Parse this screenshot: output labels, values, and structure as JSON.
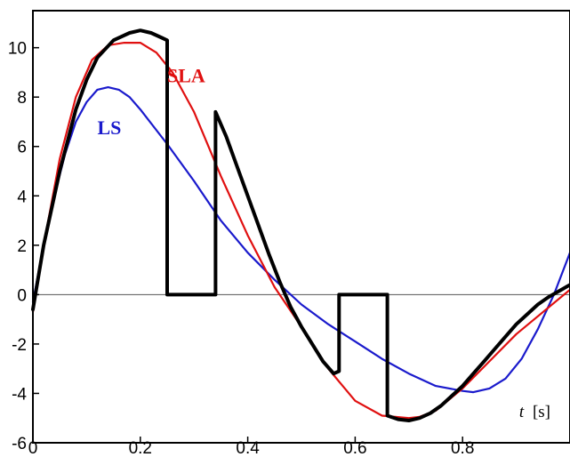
{
  "chart_data": {
    "type": "line",
    "xlabel": {
      "var": "t",
      "unit": "[s]"
    },
    "ylabel": "",
    "xlim": [
      0,
      1.0
    ],
    "ylim": [
      -6,
      11.5
    ],
    "xticks": [
      0,
      0.2,
      0.4,
      0.6,
      0.8
    ],
    "xtick_labels": [
      "0",
      "0.2",
      "0.4",
      "0.6",
      "0.8"
    ],
    "yticks": [
      -6,
      -4,
      -2,
      0,
      2,
      4,
      6,
      8,
      10
    ],
    "ytick_labels": [
      "-6",
      "-4",
      "-2",
      "0",
      "2",
      "4",
      "6",
      "8",
      "10"
    ],
    "grid": false,
    "zero_line": true,
    "series": [
      {
        "key": "measured",
        "color": "#000000",
        "x": [
          0,
          0.02,
          0.05,
          0.08,
          0.1,
          0.12,
          0.15,
          0.18,
          0.2,
          0.22,
          0.24,
          0.25,
          0.25,
          0.34,
          0.34,
          0.36,
          0.38,
          0.4,
          0.42,
          0.44,
          0.46,
          0.48,
          0.5,
          0.52,
          0.54,
          0.56,
          0.57,
          0.57,
          0.66,
          0.66,
          0.68,
          0.7,
          0.72,
          0.74,
          0.76,
          0.78,
          0.8,
          0.82,
          0.84,
          0.86,
          0.88,
          0.9,
          0.92,
          0.94,
          0.96,
          1.0
        ],
        "values": [
          -0.6,
          2.0,
          5.0,
          7.5,
          8.7,
          9.6,
          10.3,
          10.6,
          10.7,
          10.6,
          10.4,
          10.3,
          0,
          0,
          7.4,
          6.4,
          5.2,
          4.0,
          2.8,
          1.6,
          0.5,
          -0.5,
          -1.3,
          -2.0,
          -2.7,
          -3.2,
          -3.1,
          0,
          0,
          -4.9,
          -5.05,
          -5.1,
          -5.0,
          -4.8,
          -4.5,
          -4.1,
          -3.7,
          -3.2,
          -2.7,
          -2.2,
          -1.7,
          -1.2,
          -0.8,
          -0.4,
          -0.1,
          0.4
        ]
      },
      {
        "key": "LS",
        "name": "LS",
        "color": "#1a1acc",
        "x": [
          0,
          0.02,
          0.04,
          0.06,
          0.08,
          0.1,
          0.12,
          0.14,
          0.16,
          0.18,
          0.2,
          0.25,
          0.3,
          0.35,
          0.4,
          0.45,
          0.5,
          0.55,
          0.6,
          0.65,
          0.7,
          0.75,
          0.8,
          0.82,
          0.85,
          0.88,
          0.91,
          0.94,
          0.97,
          1.0
        ],
        "values": [
          -0.3,
          2.0,
          4.0,
          5.7,
          7.0,
          7.8,
          8.3,
          8.4,
          8.3,
          8.0,
          7.5,
          6.1,
          4.6,
          3.0,
          1.7,
          0.6,
          -0.4,
          -1.2,
          -1.9,
          -2.6,
          -3.2,
          -3.7,
          -3.9,
          -3.95,
          -3.8,
          -3.4,
          -2.6,
          -1.4,
          0.0,
          1.7
        ]
      },
      {
        "key": "SLA",
        "name": "SLA",
        "color": "#e01010",
        "x": [
          0,
          0.02,
          0.05,
          0.08,
          0.11,
          0.14,
          0.17,
          0.2,
          0.23,
          0.26,
          0.3,
          0.35,
          0.4,
          0.45,
          0.5,
          0.55,
          0.6,
          0.65,
          0.7,
          0.72,
          0.75,
          0.8,
          0.85,
          0.9,
          0.95,
          1.0
        ],
        "values": [
          -0.7,
          2.0,
          5.5,
          8.0,
          9.5,
          10.1,
          10.2,
          10.2,
          9.8,
          9.0,
          7.4,
          4.8,
          2.4,
          0.3,
          -1.3,
          -3.0,
          -4.3,
          -4.9,
          -5.0,
          -4.95,
          -4.7,
          -3.8,
          -2.7,
          -1.6,
          -0.7,
          0.2
        ]
      }
    ],
    "annotations": [
      {
        "text": "SLA",
        "color": "#e01010",
        "x": 0.25,
        "y": 8.6
      },
      {
        "text": "LS",
        "color": "#1a1acc",
        "x": 0.12,
        "y": 6.5
      }
    ]
  }
}
